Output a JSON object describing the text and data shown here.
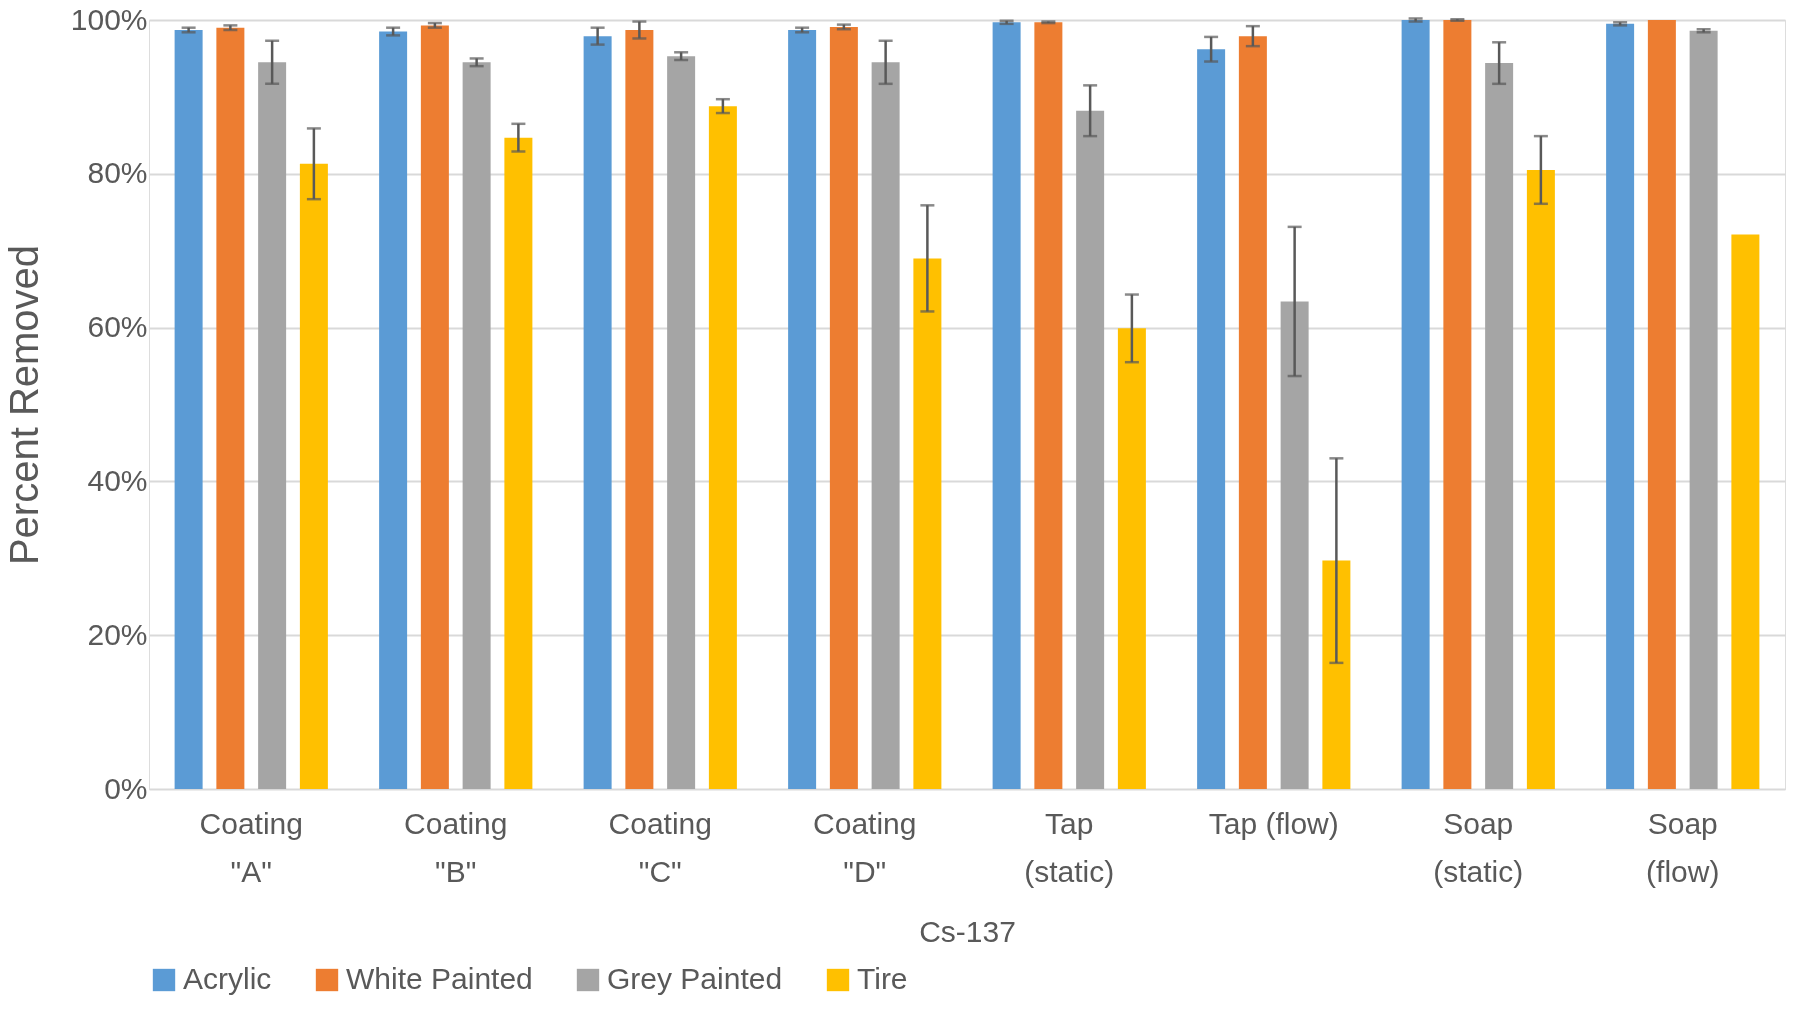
{
  "chart_data": {
    "type": "bar",
    "categories": [
      "Coating\n\"A\"",
      "Coating\n\"B\"",
      "Coating\n\"C\"",
      "Coating\n\"D\"",
      "Tap\n(static)",
      "Tap (flow)",
      "Soap\n(static)",
      "Soap\n(flow)"
    ],
    "xlabel": "Cs-137",
    "ylabel": "Percent Removed",
    "ylim": [
      0,
      100
    ],
    "yticks": [
      {
        "value": 0,
        "label": "0%"
      },
      {
        "value": 20,
        "label": "20%"
      },
      {
        "value": 40,
        "label": "40%"
      },
      {
        "value": 60,
        "label": "60%"
      },
      {
        "value": 80,
        "label": "80%"
      },
      {
        "value": 100,
        "label": "100%"
      }
    ],
    "grid": "y",
    "legend": "bottom",
    "series": [
      {
        "name": "Acrylic",
        "color": "#5b9bd5",
        "values": [
          98.7,
          98.5,
          97.9,
          98.7,
          99.7,
          96.2,
          100,
          99.5
        ],
        "errors": [
          0.3,
          0.5,
          1.1,
          0.3,
          0.2,
          1.6,
          0.2,
          0.2
        ]
      },
      {
        "name": "White Painted",
        "color": "#ed7d31",
        "values": [
          99.0,
          99.3,
          98.7,
          99.1,
          99.7,
          97.9,
          100,
          100
        ],
        "errors": [
          0.3,
          0.3,
          1.1,
          0.3,
          0.1,
          1.3,
          0.1,
          null
        ]
      },
      {
        "name": "Grey Painted",
        "color": "#a5a5a5",
        "values": [
          94.5,
          94.5,
          95.3,
          94.5,
          88.2,
          63.4,
          94.4,
          98.6
        ],
        "errors": [
          2.8,
          0.5,
          0.5,
          2.8,
          3.3,
          9.7,
          2.7,
          0.2
        ]
      },
      {
        "name": "Tire",
        "color": "#ffc000",
        "values": [
          81.3,
          84.7,
          88.8,
          69.0,
          59.9,
          29.7,
          80.5,
          72.1
        ],
        "errors": [
          4.6,
          1.8,
          0.9,
          6.9,
          4.4,
          13.3,
          4.4,
          null
        ]
      }
    ]
  }
}
